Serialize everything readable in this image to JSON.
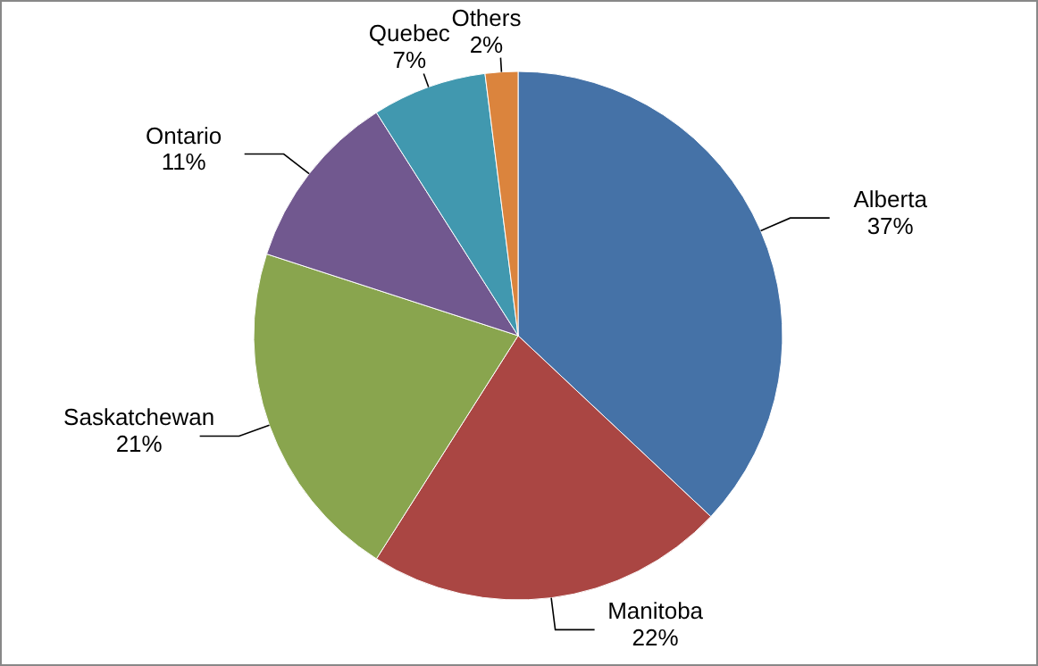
{
  "chart_data": {
    "type": "pie",
    "categories": [
      "Alberta",
      "Manitoba",
      "Saskatchewan",
      "Ontario",
      "Quebec",
      "Others"
    ],
    "values": [
      37,
      22,
      21,
      11,
      7,
      2
    ],
    "value_labels": [
      "37%",
      "22%",
      "21%",
      "11%",
      "7%",
      "2%"
    ],
    "colors": [
      "#4572a7",
      "#aa4643",
      "#89a54e",
      "#71588f",
      "#4198af",
      "#db843d"
    ]
  }
}
